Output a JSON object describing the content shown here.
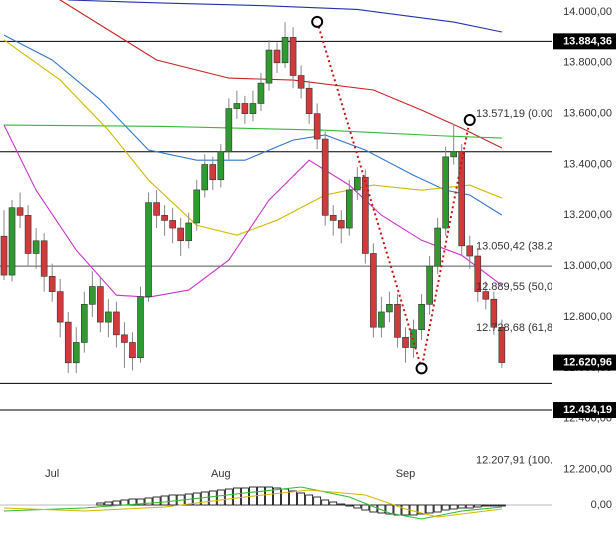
{
  "chart_data": {
    "type": "candlestick",
    "categories": [
      null,
      null,
      null,
      null,
      null,
      null,
      "Jul",
      null,
      null,
      null,
      null,
      null,
      null,
      null,
      null,
      null,
      null,
      null,
      null,
      null,
      null,
      null,
      null,
      null,
      null,
      null,
      null,
      "Aug",
      null,
      null,
      null,
      null,
      null,
      null,
      null,
      null,
      null,
      null,
      null,
      null,
      null,
      null,
      null,
      null,
      null,
      null,
      null,
      null,
      null,
      null,
      "Sep",
      null,
      null,
      null,
      null,
      null,
      null,
      null,
      null,
      null,
      null,
      null,
      null
    ],
    "ohlc": [
      [
        13118,
        13220,
        12945,
        12965
      ],
      [
        12965,
        13260,
        12940,
        13230
      ],
      [
        13230,
        13290,
        13150,
        13200
      ],
      [
        13200,
        13240,
        13000,
        13050
      ],
      [
        13050,
        13150,
        12990,
        13100
      ],
      [
        13100,
        13130,
        12900,
        12960
      ],
      [
        12960,
        13010,
        12860,
        12900
      ],
      [
        12900,
        12950,
        12720,
        12780
      ],
      [
        12780,
        12820,
        12580,
        12620
      ],
      [
        12620,
        12760,
        12580,
        12700
      ],
      [
        12700,
        12900,
        12660,
        12850
      ],
      [
        12850,
        12980,
        12800,
        12920
      ],
      [
        12920,
        12960,
        12740,
        12780
      ],
      [
        12780,
        12870,
        12720,
        12820
      ],
      [
        12820,
        12860,
        12680,
        12730
      ],
      [
        12730,
        12780,
        12600,
        12700
      ],
      [
        12700,
        12740,
        12590,
        12640
      ],
      [
        12640,
        12920,
        12620,
        12880
      ],
      [
        12880,
        13290,
        12860,
        13250
      ],
      [
        13250,
        13300,
        13150,
        13200
      ],
      [
        13200,
        13240,
        13120,
        13180
      ],
      [
        13180,
        13230,
        13090,
        13150
      ],
      [
        13150,
        13190,
        13040,
        13100
      ],
      [
        13100,
        13210,
        13070,
        13170
      ],
      [
        13170,
        13340,
        13140,
        13300
      ],
      [
        13300,
        13440,
        13270,
        13400
      ],
      [
        13400,
        13430,
        13300,
        13340
      ],
      [
        13340,
        13480,
        13310,
        13450
      ],
      [
        13450,
        13660,
        13420,
        13620
      ],
      [
        13620,
        13690,
        13580,
        13640
      ],
      [
        13640,
        13670,
        13560,
        13600
      ],
      [
        13600,
        13690,
        13570,
        13640
      ],
      [
        13640,
        13760,
        13610,
        13720
      ],
      [
        13720,
        13890,
        13690,
        13850
      ],
      [
        13850,
        13880,
        13760,
        13800
      ],
      [
        13800,
        13960,
        13780,
        13900
      ],
      [
        13900,
        13940,
        13700,
        13750
      ],
      [
        13750,
        13790,
        13660,
        13700
      ],
      [
        13700,
        13730,
        13560,
        13600
      ],
      [
        13600,
        13640,
        13460,
        13500
      ],
      [
        13500,
        13530,
        13160,
        13200
      ],
      [
        13200,
        13240,
        13120,
        13180
      ],
      [
        13180,
        13220,
        13090,
        13150
      ],
      [
        13150,
        13340,
        13120,
        13300
      ],
      [
        13300,
        13390,
        13260,
        13350
      ],
      [
        13350,
        13380,
        13010,
        13050
      ],
      [
        13050,
        13090,
        12720,
        12760
      ],
      [
        12760,
        12880,
        12720,
        12820
      ],
      [
        12820,
        12900,
        12780,
        12850
      ],
      [
        12850,
        12890,
        12680,
        12720
      ],
      [
        12720,
        12760,
        12620,
        12680
      ],
      [
        12680,
        12790,
        12640,
        12750
      ],
      [
        12750,
        12890,
        12710,
        12850
      ],
      [
        12850,
        13040,
        12810,
        13000
      ],
      [
        13000,
        13190,
        12970,
        13150
      ],
      [
        13150,
        13470,
        13120,
        13430
      ],
      [
        13430,
        13560,
        13400,
        13450
      ],
      [
        13450,
        13480,
        13040,
        13080
      ],
      [
        13080,
        13120,
        12990,
        13040
      ],
      [
        13040,
        13070,
        12860,
        12900
      ],
      [
        12900,
        12940,
        12830,
        12870
      ],
      [
        12870,
        12900,
        12730,
        12760
      ],
      [
        12760,
        12790,
        12600,
        12620.96
      ]
    ],
    "up_color": "#2f9a2f",
    "down_color": "#d03a3a",
    "ylim": [
      12100,
      14047
    ],
    "yticks": [
      {
        "value": 12200,
        "label": "12.200,00"
      },
      {
        "value": 12400,
        "label": "12.400,00"
      },
      {
        "value": 12600,
        "label": "12.600,00"
      },
      {
        "value": 12800,
        "label": "12.800,00"
      },
      {
        "value": 13000,
        "label": "13.000,00"
      },
      {
        "value": 13200,
        "label": "13.200,00"
      },
      {
        "value": 13400,
        "label": "13.400,00"
      },
      {
        "value": 13600,
        "label": "13.600,00"
      },
      {
        "value": 13800,
        "label": "13.800,00"
      },
      {
        "value": 14000,
        "label": "14.000,00"
      }
    ],
    "levels": [
      {
        "value": 13884.36,
        "label": "13.884,36"
      },
      {
        "value": 13450
      },
      {
        "value": 13000,
        "color": "#555"
      },
      {
        "value": 12539
      },
      {
        "value": 12434.19,
        "label": "12.434,19"
      }
    ],
    "price_label": {
      "value": 12620.96,
      "label": "12.620,96"
    },
    "fib_labels": [
      {
        "value": 13571.19,
        "label": "13.571,19 (0.00"
      },
      {
        "value": 13050.42,
        "label": "13.050,42 (38.2"
      },
      {
        "value": 12889.55,
        "label": "12.889,55 (50,0"
      },
      {
        "value": 12728.68,
        "label": "12.728,68 (61,8"
      },
      {
        "value": 12207.91,
        "label": "12.207,91 (100."
      }
    ],
    "zigzag": {
      "color": "#cc1111",
      "x": [
        39,
        52,
        58
      ],
      "values": [
        13961,
        12598,
        13575
      ]
    },
    "overlays": [
      {
        "color": "#2233aa",
        "x": [
          8,
          20,
          32,
          44,
          56,
          62
        ],
        "values": [
          14047,
          14035,
          14025,
          14010,
          13960,
          13921
        ]
      },
      {
        "color": "#cc2222",
        "x": [
          0,
          7,
          19,
          28,
          36,
          46,
          52,
          57,
          62
        ],
        "values": [
          14120,
          14047,
          13811,
          13740,
          13732,
          13693,
          13614,
          13543,
          13465
        ]
      },
      {
        "color": "#33bb33",
        "x": [
          0,
          20,
          40,
          55,
          62
        ],
        "values": [
          13555,
          13550,
          13535,
          13512,
          13504
        ]
      },
      {
        "color": "#3377cc",
        "x": [
          0,
          6,
          12,
          18,
          24,
          30,
          36,
          40,
          45,
          51,
          55,
          58,
          62
        ],
        "values": [
          13909,
          13811,
          13654,
          13457,
          13417,
          13417,
          13496,
          13516,
          13457,
          13358,
          13299,
          13280,
          13201
        ]
      },
      {
        "color": "#d4b800",
        "x": [
          0,
          7,
          13,
          18,
          24,
          29,
          34,
          40,
          46,
          52,
          58,
          62
        ],
        "values": [
          13890,
          13732,
          13535,
          13339,
          13161,
          13122,
          13181,
          13280,
          13319,
          13299,
          13319,
          13268
        ]
      },
      {
        "color": "#cc33cc",
        "x": [
          0,
          4,
          9,
          14,
          18,
          23,
          28,
          33,
          38,
          43,
          47,
          52,
          57,
          62
        ],
        "values": [
          13555,
          13299,
          13063,
          12886,
          12878,
          12906,
          13024,
          13260,
          13417,
          13319,
          13201,
          13102,
          13043,
          12925
        ]
      }
    ],
    "oscillator": {
      "ylim": [
        -43,
        27
      ],
      "yticks": [
        {
          "value": 0,
          "label": "0,00"
        }
      ],
      "histogram": [
        null,
        null,
        null,
        null,
        null,
        null,
        null,
        null,
        null,
        null,
        null,
        null,
        2,
        3,
        4,
        5,
        6,
        6,
        7,
        8,
        9,
        10,
        10,
        11,
        12,
        13,
        14,
        15,
        16,
        17,
        17,
        18,
        18,
        18,
        17,
        16,
        14,
        12,
        10,
        8,
        5,
        3,
        1,
        -1,
        -3,
        -5,
        -7,
        -8,
        -9,
        -10,
        -10,
        -10,
        -9,
        -8,
        -7,
        -5,
        -4,
        -3,
        -3,
        -2,
        -1,
        -1,
        -1
      ],
      "lines": [
        {
          "color": "#33bb33",
          "x": [
            0,
            10,
            20,
            30,
            37,
            43,
            48,
            52,
            57,
            62
          ],
          "values": [
            -6,
            -3,
            3,
            12,
            18,
            8,
            -8,
            -14,
            -6,
            -2
          ]
        },
        {
          "color": "#d4b800",
          "x": [
            0,
            10,
            20,
            30,
            38,
            45,
            50,
            54,
            58,
            62
          ],
          "values": [
            -3,
            -6,
            -2,
            8,
            15,
            10,
            -4,
            -12,
            -8,
            -4
          ]
        }
      ]
    }
  }
}
